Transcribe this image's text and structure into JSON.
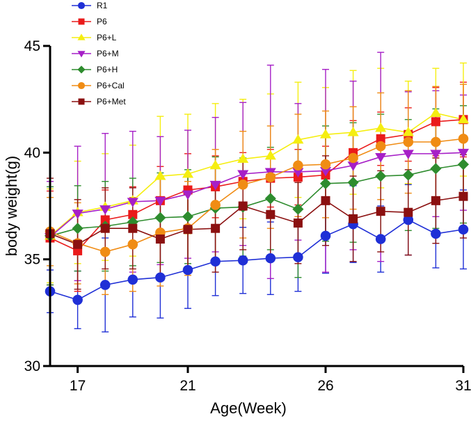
{
  "chart_data": {
    "type": "line",
    "title": "",
    "xlabel": "Age(Week)",
    "ylabel": "body weight(g)",
    "xlim": [
      16,
      31
    ],
    "ylim": [
      30,
      45
    ],
    "x": [
      16,
      17,
      18,
      19,
      20,
      21,
      22,
      23,
      24,
      25,
      26,
      27,
      28,
      29,
      30,
      31
    ],
    "x_ticks": [
      "17",
      "21",
      "26",
      "31"
    ],
    "x_tick_values": [
      17,
      21,
      26,
      31
    ],
    "y_ticks": [
      "30",
      "35",
      "40",
      "45"
    ],
    "y_tick_values": [
      30,
      35,
      40,
      45
    ],
    "legend_position": "top-left",
    "series": [
      {
        "name": "R1",
        "color": "#1f2fd6",
        "marker": "circle",
        "values": [
          33.5,
          33.1,
          33.8,
          34.05,
          34.15,
          34.5,
          34.9,
          34.95,
          35.05,
          35.1,
          36.1,
          36.65,
          35.95,
          36.85,
          36.2,
          36.4
        ],
        "errors": [
          1.0,
          1.35,
          2.2,
          1.75,
          1.9,
          1.8,
          1.6,
          1.55,
          1.7,
          1.6,
          1.75,
          1.8,
          1.55,
          1.65,
          1.6,
          1.85
        ]
      },
      {
        "name": "P6",
        "color": "#ea1b1b",
        "marker": "square",
        "values": [
          36.0,
          35.4,
          36.85,
          37.1,
          37.75,
          38.25,
          38.4,
          38.65,
          38.8,
          38.85,
          38.95,
          40.0,
          40.65,
          40.85,
          41.45,
          41.55
        ],
        "errors": [
          2.2,
          1.9,
          1.4,
          1.3,
          1.6,
          1.7,
          1.45,
          1.35,
          1.35,
          1.3,
          1.35,
          1.5,
          1.25,
          1.25,
          1.6,
          1.75
        ]
      },
      {
        "name": "P6+L",
        "color": "#f5ee10",
        "marker": "triangle-up",
        "values": [
          36.1,
          37.2,
          37.45,
          37.75,
          38.9,
          39.0,
          39.4,
          39.7,
          39.85,
          40.6,
          40.85,
          40.95,
          41.15,
          40.95,
          41.85,
          41.55
        ],
        "errors": [
          2.2,
          2.4,
          2.5,
          2.6,
          2.8,
          2.8,
          2.9,
          2.8,
          2.9,
          2.7,
          2.2,
          2.9,
          2.8,
          2.4,
          2.1,
          2.65
        ]
      },
      {
        "name": "P6+M",
        "color": "#a61fc7",
        "marker": "triangle-down",
        "values": [
          36.05,
          37.15,
          37.35,
          37.7,
          37.75,
          38.05,
          38.5,
          39.0,
          39.1,
          39.1,
          39.15,
          39.4,
          39.8,
          39.95,
          39.95,
          40.0
        ],
        "errors": [
          2.6,
          3.15,
          3.55,
          3.3,
          3.0,
          3.0,
          3.15,
          3.35,
          5.0,
          3.2,
          4.75,
          3.95,
          4.9,
          2.9,
          2.95,
          2.7
        ]
      },
      {
        "name": "P6+H",
        "color": "#2e8c2e",
        "marker": "diamond",
        "values": [
          36.1,
          36.45,
          36.55,
          36.75,
          36.95,
          37.0,
          37.4,
          37.45,
          37.85,
          37.35,
          38.55,
          38.6,
          38.9,
          38.95,
          39.25,
          39.45
        ],
        "errors": [
          2.3,
          2.0,
          2.1,
          2.05,
          2.1,
          2.2,
          2.4,
          2.3,
          2.4,
          3.2,
          2.7,
          2.8,
          2.9,
          2.6,
          2.8,
          2.75
        ]
      },
      {
        "name": "P6+Cal",
        "color": "#f08c14",
        "marker": "circle",
        "values": [
          36.3,
          35.75,
          35.35,
          35.7,
          36.25,
          36.45,
          37.55,
          38.5,
          38.85,
          39.4,
          39.45,
          39.75,
          40.3,
          40.5,
          40.5,
          40.65
        ],
        "errors": [
          1.6,
          1.9,
          2.0,
          2.2,
          2.5,
          2.2,
          2.6,
          2.5,
          2.4,
          2.4,
          2.5,
          2.4,
          2.5,
          2.4,
          2.6,
          2.55
        ]
      },
      {
        "name": "P6+Met",
        "color": "#8b1010",
        "marker": "square",
        "values": [
          36.2,
          35.7,
          36.45,
          36.45,
          35.95,
          36.4,
          36.45,
          37.5,
          37.1,
          36.7,
          37.75,
          36.9,
          37.25,
          37.2,
          37.75,
          37.95
        ],
        "errors": [
          2.6,
          2.1,
          1.9,
          1.9,
          1.8,
          2.0,
          2.05,
          2.05,
          1.9,
          1.9,
          2.1,
          2.0,
          1.9,
          2.0,
          2.0,
          1.95
        ]
      }
    ]
  }
}
